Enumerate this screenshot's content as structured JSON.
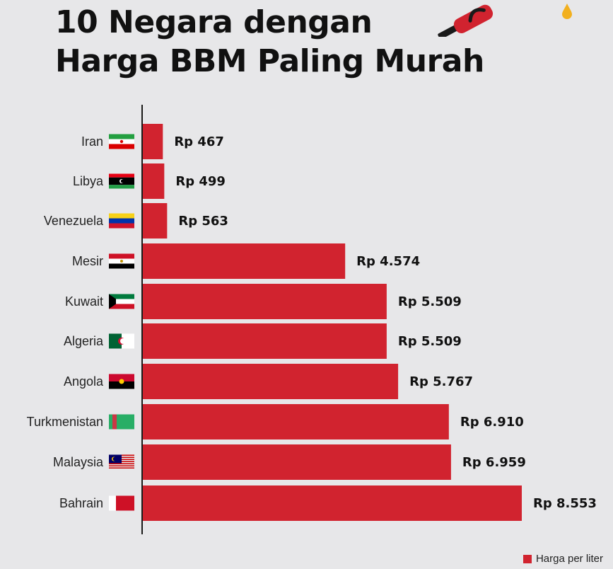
{
  "title_line1": "10 Negara dengan",
  "title_line2": "Harga BBM Paling Murah",
  "legend_label": "Harga per liter",
  "colors": {
    "bar": "#d1232f",
    "background": "#e7e7e9",
    "text": "#111111"
  },
  "chart_data": {
    "type": "bar",
    "orientation": "horizontal",
    "categories": [
      "Iran",
      "Libya",
      "Venezuela",
      "Mesir",
      "Kuwait",
      "Algeria",
      "Angola",
      "Turkmenistan",
      "Malaysia",
      "Bahrain"
    ],
    "values": [
      467,
      499,
      563,
      4574,
      5509,
      5509,
      5767,
      6910,
      6959,
      8553
    ],
    "data_labels": [
      "Rp 467",
      "Rp 499",
      "Rp 563",
      "Rp 4.574",
      "Rp 5.509",
      "Rp 5.509",
      "Rp 5.767",
      "Rp 6.910",
      "Rp 6.959",
      "Rp 8.553"
    ],
    "series": [
      {
        "name": "Harga per liter",
        "values": [
          467,
          499,
          563,
          4574,
          5509,
          5509,
          5767,
          6910,
          6959,
          8553
        ]
      }
    ],
    "flag_icons": [
      "iran-flag-icon",
      "libya-flag-icon",
      "venezuela-flag-icon",
      "egypt-flag-icon",
      "kuwait-flag-icon",
      "algeria-flag-icon",
      "angola-flag-icon",
      "turkmenistan-flag-icon",
      "malaysia-flag-icon",
      "bahrain-flag-icon"
    ],
    "legend_position": "bottom-right",
    "grid": false
  }
}
